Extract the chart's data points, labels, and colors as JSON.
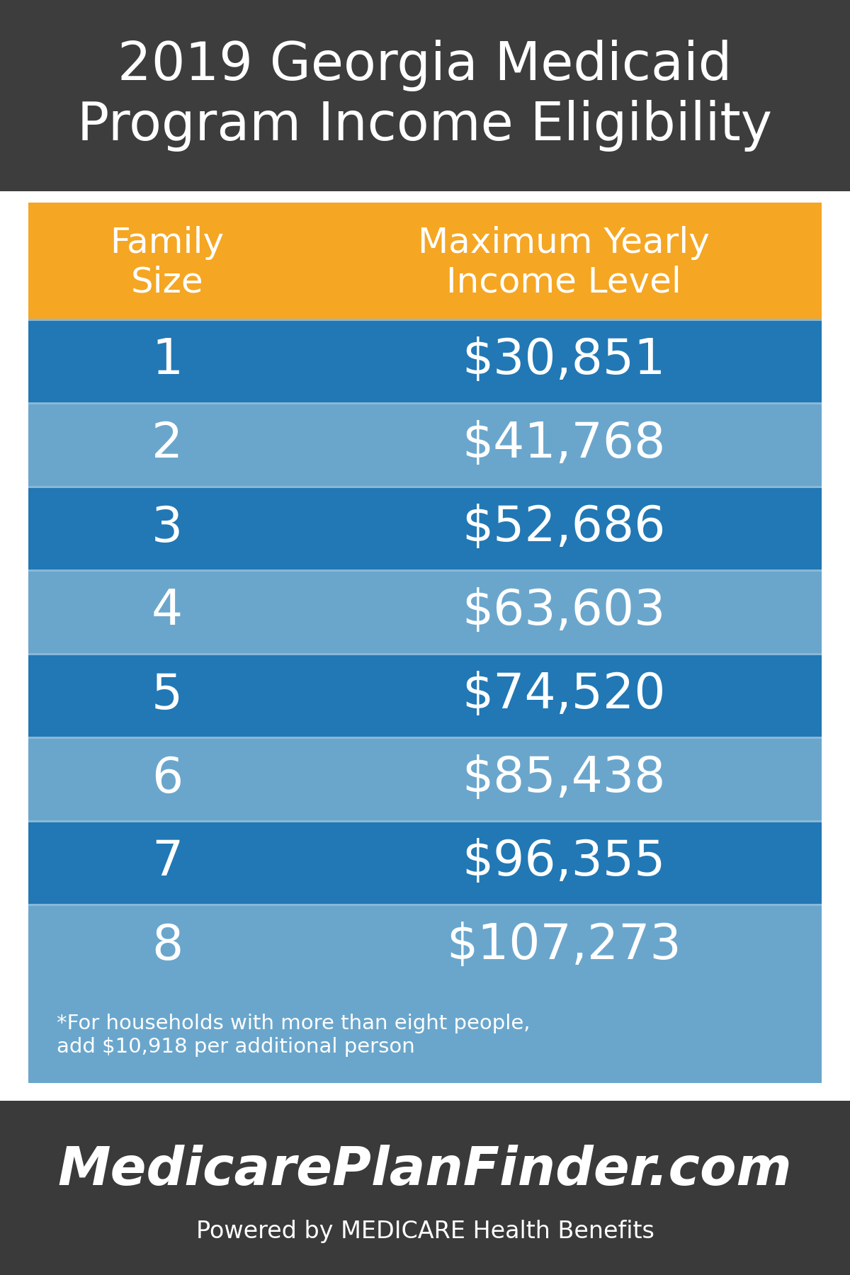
{
  "title_line1": "2019 Georgia Medicaid",
  "title_line2": "Program Income Eligibility",
  "title_bg_color": "#3d3d3d",
  "title_text_color": "#ffffff",
  "header_col1": "Family\nSize",
  "header_col2": "Maximum Yearly\nIncome Level",
  "header_bg_color": "#f5a623",
  "header_text_color": "#ffffff",
  "row_color_dark": "#2178b4",
  "row_color_light": "#6aa6cc",
  "rows": [
    [
      "1",
      "$30,851"
    ],
    [
      "2",
      "$41,768"
    ],
    [
      "3",
      "$52,686"
    ],
    [
      "4",
      "$63,603"
    ],
    [
      "5",
      "$74,520"
    ],
    [
      "6",
      "$85,438"
    ],
    [
      "7",
      "$96,355"
    ],
    [
      "8",
      "$107,273"
    ]
  ],
  "footnote_text": "*For households with more than eight people,\nadd $10,918 per additional person",
  "footnote_bg_color": "#6aa6cc",
  "footer_bg_color": "#3a3a3a",
  "footer_main_text": "MedicarePlanFinder.com",
  "footer_sub_text": "Powered by MEDICARE Health Benefits",
  "footer_text_color": "#ffffff",
  "white_bg_color": "#ffffff",
  "text_white": "#ffffff"
}
